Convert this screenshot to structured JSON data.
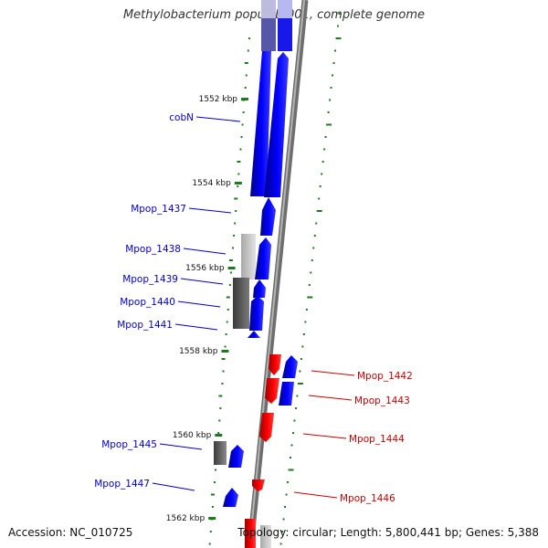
{
  "title": "Methylobacterium populi BJ001, complete genome",
  "footer": {
    "accession_label": "Accession:",
    "accession": "NC_010725",
    "topology_label": "Topology:",
    "topology": "circular",
    "length_label": "Length:",
    "length": "5,800,441 bp",
    "genes_label": "Genes:",
    "genes": "5,388"
  },
  "colors": {
    "forward_strand": "#0000ff",
    "reverse_strand": "#ff0000",
    "backbone": "#888888",
    "gc_tick": "#1f7a1f",
    "forward_label": "#0000cc",
    "reverse_label": "#cc0000"
  },
  "position_ticks": [
    "1552 kbp",
    "1554 kbp",
    "1556 kbp",
    "1558 kbp",
    "1560 kbp",
    "1562 kbp"
  ],
  "genes": [
    {
      "name": "cobN",
      "strand": "forward"
    },
    {
      "name": "Mpop_1437",
      "strand": "forward"
    },
    {
      "name": "Mpop_1438",
      "strand": "forward"
    },
    {
      "name": "Mpop_1439",
      "strand": "forward"
    },
    {
      "name": "Mpop_1440",
      "strand": "forward"
    },
    {
      "name": "Mpop_1441",
      "strand": "forward"
    },
    {
      "name": "Mpop_1442",
      "strand": "reverse"
    },
    {
      "name": "Mpop_1443",
      "strand": "reverse"
    },
    {
      "name": "Mpop_1444",
      "strand": "reverse"
    },
    {
      "name": "Mpop_1445",
      "strand": "forward"
    },
    {
      "name": "Mpop_1446",
      "strand": "reverse"
    },
    {
      "name": "Mpop_1447",
      "strand": "forward"
    }
  ]
}
